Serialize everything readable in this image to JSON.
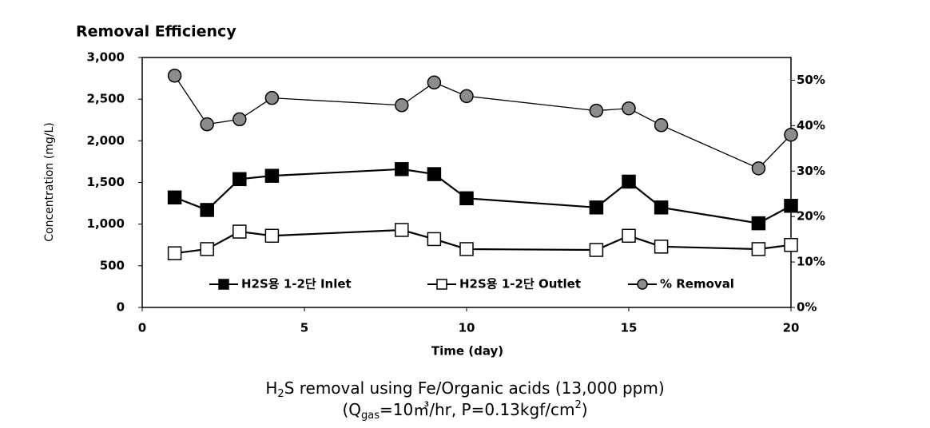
{
  "chart_data": {
    "type": "line",
    "title": "Removal Efficiency",
    "x_label": "Time (day)",
    "y_label": "Concentration (mg/L)",
    "x": [
      1,
      2,
      3,
      4,
      8,
      9,
      10,
      14,
      15,
      16,
      19,
      20
    ],
    "series": [
      {
        "name": "H2S용 1-2단 Inlet",
        "color": "#000000",
        "marker": "square",
        "values": [
          1320,
          1170,
          1540,
          1580,
          1660,
          1600,
          1310,
          1200,
          1510,
          1200,
          1010,
          1220
        ]
      },
      {
        "name": "H2S용 1-2단 Outlet",
        "color": "#ffffff",
        "marker": "square",
        "values": [
          650,
          700,
          910,
          860,
          930,
          820,
          700,
          690,
          860,
          730,
          700,
          750
        ]
      },
      {
        "name": "% Removal",
        "color": "#8c8c8c",
        "marker": "circle",
        "axis": "y2",
        "values": [
          51,
          40.3,
          41.4,
          46.1,
          44.5,
          49.5,
          46.5,
          43.3,
          43.8,
          40.1,
          30.6,
          38
        ]
      }
    ],
    "xlim": [
      0,
      20
    ],
    "xticks": [
      0,
      5,
      10,
      15,
      20
    ],
    "ylim": [
      0,
      3000
    ],
    "yticks": [
      0,
      500,
      {
        "value": 1000,
        "label": "1,000"
      },
      {
        "value": 1500,
        "label": "1,500"
      },
      {
        "value": 2000,
        "label": "2,000"
      },
      {
        "value": 2500,
        "label": "2,500"
      },
      {
        "value": 3000,
        "label": "3,000"
      }
    ],
    "y2lim": [
      0,
      55
    ],
    "y2ticks": [
      {
        "value": 0,
        "label": "0%"
      },
      {
        "value": 10,
        "label": "10%"
      },
      {
        "value": 20,
        "label": "20%"
      },
      {
        "value": 30,
        "label": "30%"
      },
      {
        "value": 40,
        "label": "40%"
      },
      {
        "value": 50,
        "label": "50%"
      }
    ],
    "legend": "bottom",
    "caption": {
      "line1": [
        "H",
        "2",
        "S removal using Fe/Organic acids (13,000 ppm)"
      ],
      "line2": [
        "(Q",
        "gas",
        "=10㎥/hr, P=0.13kgf/cm",
        "2",
        ")"
      ]
    }
  }
}
